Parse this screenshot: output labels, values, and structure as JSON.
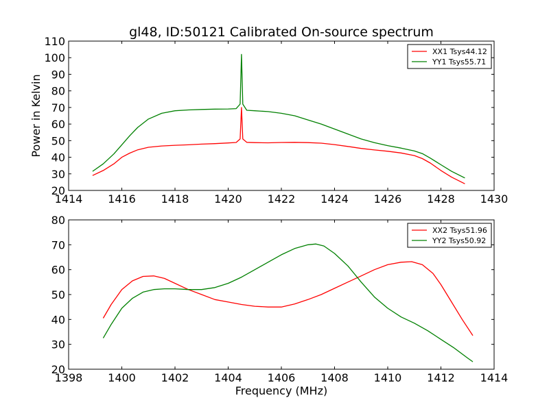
{
  "title": "gl48, ID:50121 Calibrated On-source spectrum",
  "colors": {
    "red": "#ff0000",
    "green": "#008000"
  },
  "chart_data": [
    {
      "type": "line",
      "xlabel": "",
      "ylabel": "Power in Kelvin",
      "xlim": [
        1414,
        1430
      ],
      "ylim": [
        20,
        110
      ],
      "xticks": [
        1414,
        1416,
        1418,
        1420,
        1422,
        1424,
        1426,
        1428,
        1430
      ],
      "yticks": [
        20,
        30,
        40,
        50,
        60,
        70,
        80,
        90,
        100,
        110
      ],
      "legend_position": "top-right",
      "series": [
        {
          "name": "XX1 Tsys44.12",
          "color": "#ff0000",
          "x": [
            1414.9,
            1415.3,
            1415.7,
            1416.0,
            1416.3,
            1416.6,
            1417.0,
            1417.5,
            1418.0,
            1418.5,
            1419.0,
            1419.5,
            1420.0,
            1420.3,
            1420.45,
            1420.5,
            1420.55,
            1420.7,
            1421.0,
            1421.5,
            1422.0,
            1422.5,
            1423.0,
            1423.5,
            1424.0,
            1424.5,
            1425.0,
            1425.5,
            1426.0,
            1426.5,
            1427.0,
            1427.3,
            1427.6,
            1428.0,
            1428.4,
            1428.9
          ],
          "y": [
            29,
            32,
            36,
            40,
            42.5,
            44.5,
            46,
            46.8,
            47.2,
            47.5,
            47.9,
            48.2,
            48.6,
            48.9,
            51,
            70,
            51,
            49,
            48.8,
            48.7,
            48.9,
            49,
            48.8,
            48.5,
            47.6,
            46.5,
            45.3,
            44.4,
            43.6,
            42.6,
            41,
            39.2,
            36.5,
            32,
            28,
            24
          ]
        },
        {
          "name": "YY1 Tsys55.71",
          "color": "#008000",
          "x": [
            1414.9,
            1415.3,
            1415.7,
            1416.0,
            1416.3,
            1416.6,
            1417.0,
            1417.5,
            1418.0,
            1418.5,
            1419.0,
            1419.5,
            1420.0,
            1420.3,
            1420.45,
            1420.5,
            1420.55,
            1420.7,
            1421.0,
            1421.5,
            1422.0,
            1422.5,
            1423.0,
            1423.5,
            1424.0,
            1424.5,
            1425.0,
            1425.5,
            1426.0,
            1426.5,
            1427.0,
            1427.3,
            1427.6,
            1428.0,
            1428.4,
            1428.9
          ],
          "y": [
            31.5,
            36,
            42,
            47.5,
            53,
            58,
            63,
            66.5,
            68,
            68.5,
            68.8,
            69,
            69.1,
            69.3,
            72,
            102,
            72,
            68.3,
            68,
            67.5,
            66.5,
            65,
            62.5,
            60,
            57,
            54,
            51,
            48.8,
            47,
            45.5,
            43.8,
            42.2,
            39.5,
            35.5,
            31.5,
            27.5
          ]
        }
      ]
    },
    {
      "type": "line",
      "xlabel": "Frequency (MHz)",
      "ylabel": "",
      "xlim": [
        1398,
        1414
      ],
      "ylim": [
        20,
        80
      ],
      "xticks": [
        1398,
        1400,
        1402,
        1404,
        1406,
        1408,
        1410,
        1412,
        1414
      ],
      "yticks": [
        20,
        30,
        40,
        50,
        60,
        70,
        80
      ],
      "legend_position": "top-right",
      "series": [
        {
          "name": "XX2 Tsys51.96",
          "color": "#ff0000",
          "x": [
            1399.3,
            1399.6,
            1400.0,
            1400.4,
            1400.8,
            1401.2,
            1401.6,
            1402.0,
            1402.5,
            1403.0,
            1403.5,
            1404.0,
            1404.5,
            1405.0,
            1405.5,
            1406.0,
            1406.5,
            1407.0,
            1407.5,
            1408.0,
            1408.5,
            1409.0,
            1409.5,
            1410.0,
            1410.5,
            1410.9,
            1411.3,
            1411.7,
            1412.0,
            1412.4,
            1412.8,
            1413.2
          ],
          "y": [
            40.5,
            46,
            52,
            55.5,
            57.3,
            57.5,
            56.5,
            54.5,
            52,
            50,
            48,
            47,
            46,
            45.3,
            45,
            45,
            46.2,
            48,
            50,
            52.5,
            55,
            57.5,
            60,
            62,
            63,
            63.2,
            62,
            58.5,
            54,
            47,
            40,
            33.5
          ]
        },
        {
          "name": "YY2 Tsys50.92",
          "color": "#008000",
          "x": [
            1399.3,
            1399.6,
            1400.0,
            1400.4,
            1400.8,
            1401.2,
            1401.6,
            1402.0,
            1402.5,
            1403.0,
            1403.5,
            1404.0,
            1404.5,
            1405.0,
            1405.5,
            1406.0,
            1406.5,
            1407.0,
            1407.3,
            1407.6,
            1408.0,
            1408.5,
            1409.0,
            1409.5,
            1410.0,
            1410.5,
            1411.0,
            1411.5,
            1412.0,
            1412.5,
            1413.0,
            1413.2
          ],
          "y": [
            32.5,
            38,
            44.5,
            48.5,
            51,
            52,
            52.3,
            52.3,
            52,
            52,
            52.8,
            54.5,
            57,
            60,
            63,
            66,
            68.5,
            70,
            70.3,
            69.5,
            66.5,
            61.5,
            55,
            49,
            44.5,
            41,
            38.5,
            35.5,
            32,
            28.5,
            24.5,
            23
          ]
        }
      ]
    }
  ]
}
